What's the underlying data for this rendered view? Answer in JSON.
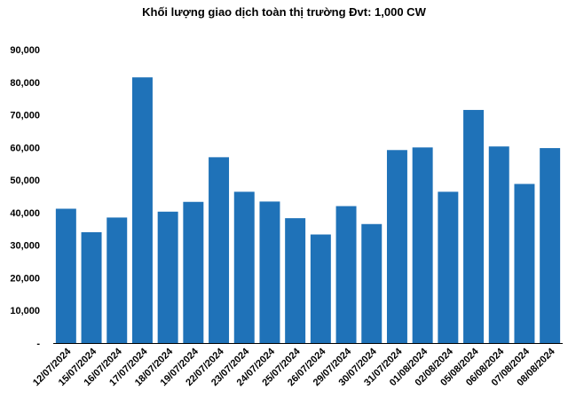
{
  "chart_data": {
    "type": "bar",
    "title": "Khối lượng giao dịch toàn thị trường Đvt: 1,000 CW",
    "xlabel": "",
    "ylabel": "",
    "ylim": [
      0,
      90000
    ],
    "grid": false,
    "legend": "none",
    "yticks": [
      "-",
      "10,000",
      "20,000",
      "30,000",
      "40,000",
      "50,000",
      "60,000",
      "70,000",
      "80,000",
      "90,000"
    ],
    "categories": [
      "12/07/2024",
      "15/07/2024",
      "16/07/2024",
      "17/07/2024",
      "18/07/2024",
      "19/07/2024",
      "22/07/2024",
      "23/07/2024",
      "24/07/2024",
      "25/07/2024",
      "26/07/2024",
      "29/07/2024",
      "30/07/2024",
      "31/07/2024",
      "01/08/2024",
      "02/08/2024",
      "05/08/2024",
      "06/08/2024",
      "07/08/2024",
      "08/08/2024"
    ],
    "values": [
      41200,
      34000,
      38500,
      81500,
      40300,
      43300,
      57000,
      46400,
      43400,
      38300,
      33300,
      42000,
      36500,
      59200,
      60000,
      46400,
      71500,
      60300,
      48800,
      59800
    ],
    "colors": {
      "bar": "#1f72b8",
      "axis": "#000000"
    }
  }
}
